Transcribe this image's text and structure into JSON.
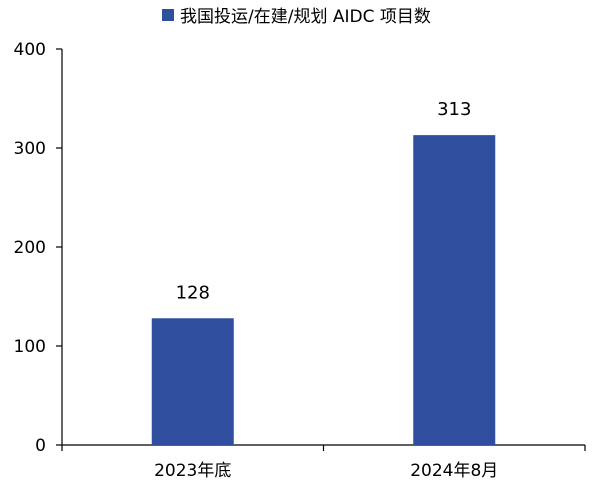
{
  "chart_data": {
    "type": "bar",
    "categories": [
      "2023年底",
      "2024年8月"
    ],
    "series": [
      {
        "name": "我国投运/在建/规划 AIDC 项目数",
        "values": [
          128,
          313
        ],
        "color": "#2f4e9e"
      }
    ],
    "data_labels": [
      "128",
      "313"
    ],
    "ylim": [
      0,
      400
    ],
    "yticks": [
      0,
      100,
      200,
      300,
      400
    ],
    "ytick_labels": [
      "0",
      "100",
      "200",
      "300",
      "400"
    ],
    "grid": false,
    "legend_position": "top-center",
    "title": "",
    "xlabel": "",
    "ylabel": ""
  }
}
